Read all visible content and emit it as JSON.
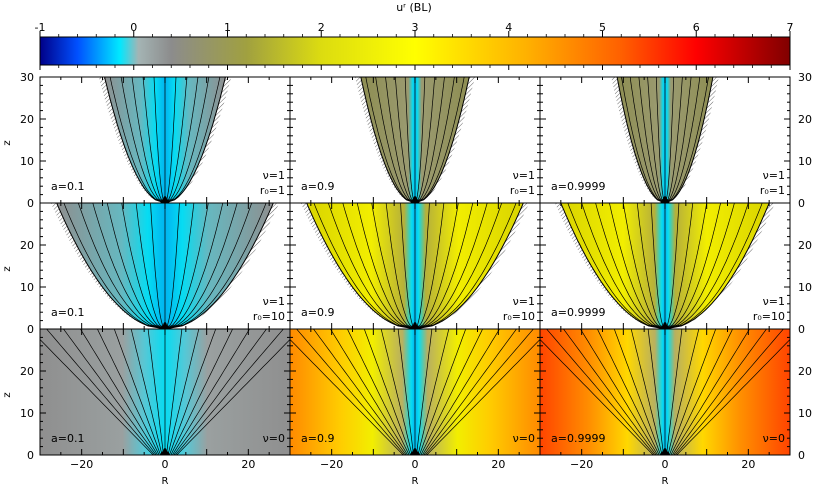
{
  "colorbar": {
    "title": "uʳ (BL)",
    "ticks": [
      "-1",
      "0",
      "1",
      "2",
      "3",
      "4",
      "5",
      "6",
      "7"
    ],
    "range": [
      -1,
      7
    ],
    "stops": [
      {
        "v": -1.0,
        "c": "#000088"
      },
      {
        "v": -0.6,
        "c": "#0050ff"
      },
      {
        "v": -0.15,
        "c": "#00e8ff"
      },
      {
        "v": 0.05,
        "c": "#a4b4b4"
      },
      {
        "v": 0.4,
        "c": "#8c8c8c"
      },
      {
        "v": 1.2,
        "c": "#a0a040"
      },
      {
        "v": 2.0,
        "c": "#dcdc10"
      },
      {
        "v": 3.0,
        "c": "#ffff00"
      },
      {
        "v": 4.2,
        "c": "#ffb000"
      },
      {
        "v": 5.2,
        "c": "#ff6000"
      },
      {
        "v": 6.0,
        "c": "#ff0000"
      },
      {
        "v": 7.0,
        "c": "#800000"
      }
    ]
  },
  "chart_data": {
    "type": "heatmap",
    "xlabel": "R",
    "ylabel": "z",
    "xlim": [
      -30,
      30
    ],
    "ylim": [
      0,
      30
    ],
    "xticks": [
      "−20",
      "0",
      "20"
    ],
    "yticks": [
      "0",
      "10",
      "20",
      "30"
    ],
    "panels": [
      {
        "label": "a=0.1",
        "nu": "ν=1",
        "r0": "r₀=1",
        "row": 0,
        "col": 0,
        "spin": 0.1,
        "shape": "funnel",
        "halfwidth_at_top": 14.5,
        "inside": "cyan",
        "outside": "white"
      },
      {
        "label": "a=0.9",
        "nu": "ν=1",
        "r0": "r₀=1",
        "row": 0,
        "col": 1,
        "spin": 0.9,
        "shape": "funnel",
        "halfwidth_at_top": 13,
        "inside": "olive",
        "outside": "white"
      },
      {
        "label": "a=0.9999",
        "nu": "ν=1",
        "r0": "r₀=1",
        "row": 0,
        "col": 2,
        "spin": 0.9999,
        "shape": "funnel",
        "halfwidth_at_top": 11.5,
        "inside": "olive",
        "outside": "white"
      },
      {
        "label": "a=0.1",
        "nu": "ν=1",
        "r0": "r₀=10",
        "row": 1,
        "col": 0,
        "spin": 0.1,
        "shape": "funnel",
        "halfwidth_at_top": 26,
        "inside": "cyan",
        "outside": "white"
      },
      {
        "label": "a=0.9",
        "nu": "ν=1",
        "r0": "r₀=10",
        "row": 1,
        "col": 1,
        "spin": 0.9,
        "shape": "funnel",
        "halfwidth_at_top": 26,
        "inside": "yellow",
        "outside": "white"
      },
      {
        "label": "a=0.9999",
        "nu": "ν=1",
        "r0": "r₀=10",
        "row": 1,
        "col": 2,
        "spin": 0.9999,
        "shape": "funnel",
        "halfwidth_at_top": 25,
        "inside": "yellow",
        "outside": "white"
      },
      {
        "label": "a=0.1",
        "nu": "ν=0",
        "r0": "",
        "row": 2,
        "col": 0,
        "spin": 0.1,
        "shape": "full",
        "halfwidth_at_top": 30,
        "inside": "gray",
        "outside": "gray"
      },
      {
        "label": "a=0.9",
        "nu": "ν=0",
        "r0": "",
        "row": 2,
        "col": 1,
        "spin": 0.9,
        "shape": "full",
        "halfwidth_at_top": 30,
        "inside": "orange",
        "outside": "orange"
      },
      {
        "label": "a=0.9999",
        "nu": "ν=0",
        "r0": "",
        "row": 2,
        "col": 2,
        "spin": 0.9999,
        "shape": "full",
        "halfwidth_at_top": 30,
        "inside": "red",
        "outside": "red"
      }
    ]
  }
}
